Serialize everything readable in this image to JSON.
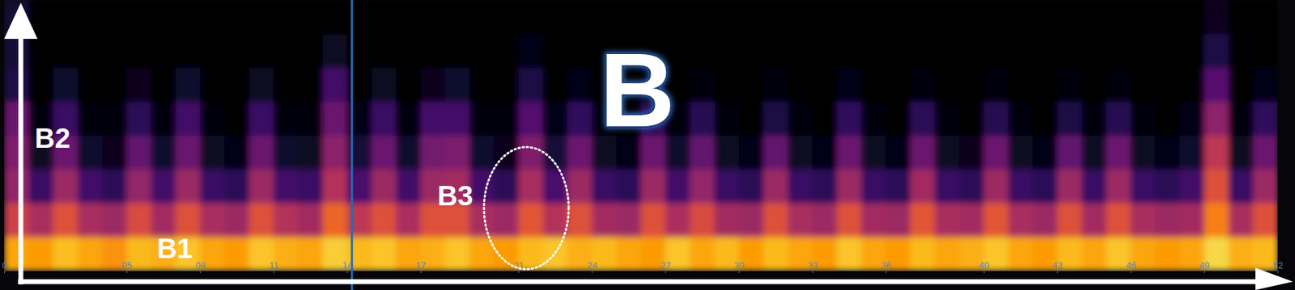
{
  "chart_data": {
    "type": "heatmap",
    "title": "B",
    "annotations": [
      "B1",
      "B2",
      "B3"
    ],
    "xlim": [
      0,
      52
    ],
    "ylim": [
      0,
      8
    ],
    "xticks": [
      0,
      {
        "value": 5,
        "label": "05"
      },
      {
        "value": 8,
        "label": "08"
      },
      11,
      14,
      17,
      21,
      24,
      27,
      30,
      33,
      36,
      40,
      43,
      46,
      49,
      52
    ],
    "tick_labels": "x",
    "vline": 14.2,
    "color_range": [
      0,
      1
    ],
    "cells": [
      [
        0.8,
        0.78,
        0.85,
        0.8,
        0.76,
        0.84,
        0.82,
        0.86,
        0.8,
        0.78,
        0.86,
        0.82,
        0.8,
        0.88,
        0.84,
        0.86,
        0.8,
        0.82,
        0.86,
        0.8,
        0.78,
        0.84,
        0.86,
        0.82,
        0.84,
        0.8,
        0.78,
        0.86,
        0.8,
        0.84,
        0.78,
        0.84,
        0.8,
        0.78,
        0.86,
        0.8,
        0.78,
        0.84,
        0.8,
        0.82,
        0.86,
        0.8,
        0.78,
        0.84,
        0.8,
        0.86,
        0.8,
        0.78,
        0.8,
        0.9,
        0.82,
        0.84
      ],
      [
        0.55,
        0.45,
        0.6,
        0.45,
        0.42,
        0.58,
        0.44,
        0.6,
        0.45,
        0.42,
        0.6,
        0.48,
        0.44,
        0.66,
        0.5,
        0.6,
        0.46,
        0.6,
        0.6,
        0.45,
        0.42,
        0.62,
        0.48,
        0.6,
        0.44,
        0.42,
        0.6,
        0.46,
        0.58,
        0.44,
        0.42,
        0.6,
        0.45,
        0.42,
        0.6,
        0.44,
        0.42,
        0.62,
        0.45,
        0.44,
        0.62,
        0.45,
        0.42,
        0.6,
        0.44,
        0.6,
        0.45,
        0.42,
        0.44,
        0.72,
        0.45,
        0.6
      ],
      [
        0.4,
        0.18,
        0.42,
        0.2,
        0.15,
        0.4,
        0.2,
        0.42,
        0.18,
        0.15,
        0.42,
        0.2,
        0.18,
        0.48,
        0.22,
        0.42,
        0.2,
        0.42,
        0.44,
        0.2,
        0.15,
        0.45,
        0.22,
        0.42,
        0.18,
        0.15,
        0.42,
        0.2,
        0.4,
        0.18,
        0.15,
        0.42,
        0.18,
        0.15,
        0.42,
        0.18,
        0.15,
        0.44,
        0.18,
        0.15,
        0.42,
        0.18,
        0.15,
        0.42,
        0.18,
        0.42,
        0.18,
        0.15,
        0.2,
        0.6,
        0.18,
        0.42
      ],
      [
        0.35,
        0.06,
        0.3,
        0.08,
        0.05,
        0.28,
        0.08,
        0.3,
        0.06,
        0.04,
        0.3,
        0.08,
        0.06,
        0.38,
        0.1,
        0.3,
        0.08,
        0.32,
        0.34,
        0.08,
        0.05,
        0.35,
        0.1,
        0.3,
        0.06,
        0.04,
        0.3,
        0.08,
        0.28,
        0.06,
        0.04,
        0.28,
        0.06,
        0.04,
        0.3,
        0.06,
        0.04,
        0.3,
        0.06,
        0.05,
        0.3,
        0.06,
        0.04,
        0.28,
        0.06,
        0.3,
        0.06,
        0.04,
        0.08,
        0.5,
        0.06,
        0.3
      ],
      [
        0.3,
        0.02,
        0.18,
        0.03,
        0.02,
        0.15,
        0.02,
        0.2,
        0.02,
        0.01,
        0.18,
        0.03,
        0.02,
        0.3,
        0.04,
        0.18,
        0.03,
        0.2,
        0.2,
        0.03,
        0.02,
        0.24,
        0.04,
        0.16,
        0.02,
        0.01,
        0.15,
        0.02,
        0.14,
        0.02,
        0.01,
        0.12,
        0.02,
        0.01,
        0.16,
        0.02,
        0.01,
        0.15,
        0.02,
        0.01,
        0.14,
        0.02,
        0.01,
        0.12,
        0.02,
        0.14,
        0.02,
        0.01,
        0.04,
        0.38,
        0.02,
        0.16
      ],
      [
        0.12,
        0,
        0.08,
        0,
        0,
        0.05,
        0,
        0.08,
        0,
        0,
        0.06,
        0,
        0,
        0.2,
        0,
        0.06,
        0,
        0.05,
        0.08,
        0,
        0,
        0.12,
        0,
        0.04,
        0,
        0,
        0.04,
        0,
        0.03,
        0,
        0,
        0.02,
        0,
        0,
        0.04,
        0,
        0,
        0.03,
        0,
        0,
        0.02,
        0,
        0,
        0.02,
        0,
        0.03,
        0,
        0,
        0,
        0.25,
        0,
        0.04
      ],
      [
        0.1,
        0,
        0,
        0,
        0,
        0,
        0,
        0,
        0,
        0,
        0,
        0,
        0,
        0.06,
        0,
        0,
        0,
        0,
        0,
        0,
        0,
        0.04,
        0,
        0,
        0,
        0,
        0,
        0,
        0,
        0,
        0,
        0,
        0,
        0,
        0,
        0,
        0,
        0,
        0,
        0,
        0,
        0,
        0,
        0,
        0,
        0,
        0,
        0,
        0,
        0.12,
        0,
        0
      ],
      [
        0.1,
        0,
        0,
        0,
        0,
        0,
        0,
        0,
        0,
        0,
        0,
        0,
        0,
        0,
        0,
        0,
        0,
        0,
        0,
        0,
        0,
        0,
        0,
        0,
        0,
        0,
        0,
        0,
        0,
        0,
        0,
        0,
        0,
        0,
        0,
        0,
        0,
        0,
        0,
        0,
        0,
        0,
        0,
        0,
        0,
        0,
        0,
        0,
        0,
        0.05,
        0,
        0
      ]
    ]
  }
}
